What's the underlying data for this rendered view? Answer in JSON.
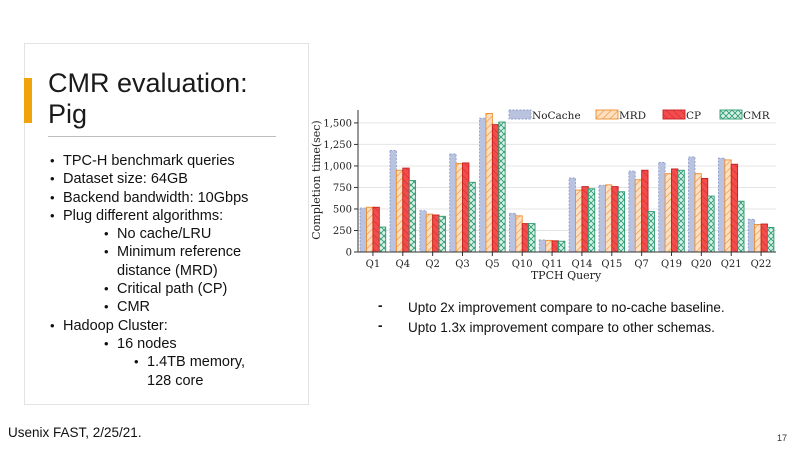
{
  "slide": {
    "title_line1": "CMR evaluation:",
    "title_line2": "Pig",
    "bullets": [
      {
        "level": 1,
        "text": "TPC-H benchmark queries"
      },
      {
        "level": 1,
        "text": "Dataset size: 64GB"
      },
      {
        "level": 1,
        "text": "Backend bandwidth: 10Gbps"
      },
      {
        "level": 1,
        "text": "Plug different algorithms:"
      },
      {
        "level": 2,
        "text": "No cache/LRU"
      },
      {
        "level": 2,
        "text": "Minimum reference"
      },
      {
        "level": 2,
        "text": "distance (MRD)",
        "continuation": true
      },
      {
        "level": 2,
        "text": "Critical path (CP)"
      },
      {
        "level": 2,
        "text": "CMR"
      },
      {
        "level": 1,
        "text": "Hadoop Cluster:"
      },
      {
        "level": 2,
        "text": "16 nodes"
      },
      {
        "level": 3,
        "text": "1.4TB memory,"
      },
      {
        "level": 3,
        "text": "128 core",
        "continuation": true
      }
    ],
    "notes": [
      "Upto 2x improvement compare to no-cache baseline.",
      "Upto 1.3x improvement compare to other schemas."
    ],
    "note_marker": "-",
    "footer": "Usenix FAST, 2/25/21.",
    "page_number": "17",
    "accent_color": "#f0a30a"
  },
  "chart_data": {
    "type": "bar",
    "xlabel": "TPCH Query",
    "ylabel": "Completion time(sec)",
    "ylim": [
      0,
      1650
    ],
    "yticks": [
      0,
      250,
      500,
      750,
      1000,
      1250,
      1500
    ],
    "legend_position": "top",
    "categories": [
      "Q1",
      "Q4",
      "Q2",
      "Q3",
      "Q5",
      "Q10",
      "Q11",
      "Q14",
      "Q15",
      "Q7",
      "Q19",
      "Q20",
      "Q21",
      "Q22"
    ],
    "series": [
      {
        "name": "NoCache",
        "color": "#b9c3e0",
        "edge": "#8f9dca",
        "values": [
          510,
          1180,
          480,
          1140,
          1555,
          450,
          140,
          860,
          775,
          940,
          1040,
          1105,
          1090,
          380
        ]
      },
      {
        "name": "MRD",
        "color": "#fde0c2",
        "edge": "#f08c2a",
        "values": [
          520,
          950,
          440,
          1030,
          1610,
          420,
          135,
          720,
          780,
          840,
          910,
          910,
          1070,
          320
        ]
      },
      {
        "name": "CP",
        "color": "#f44c4c",
        "edge": "#c41f1f",
        "values": [
          520,
          975,
          430,
          1035,
          1480,
          330,
          130,
          760,
          760,
          950,
          965,
          855,
          1020,
          325
        ]
      },
      {
        "name": "CMR",
        "color": "#d8f0e6",
        "edge": "#2a9a70",
        "values": [
          290,
          830,
          415,
          810,
          1510,
          330,
          125,
          735,
          700,
          470,
          950,
          650,
          590,
          285
        ]
      }
    ]
  }
}
